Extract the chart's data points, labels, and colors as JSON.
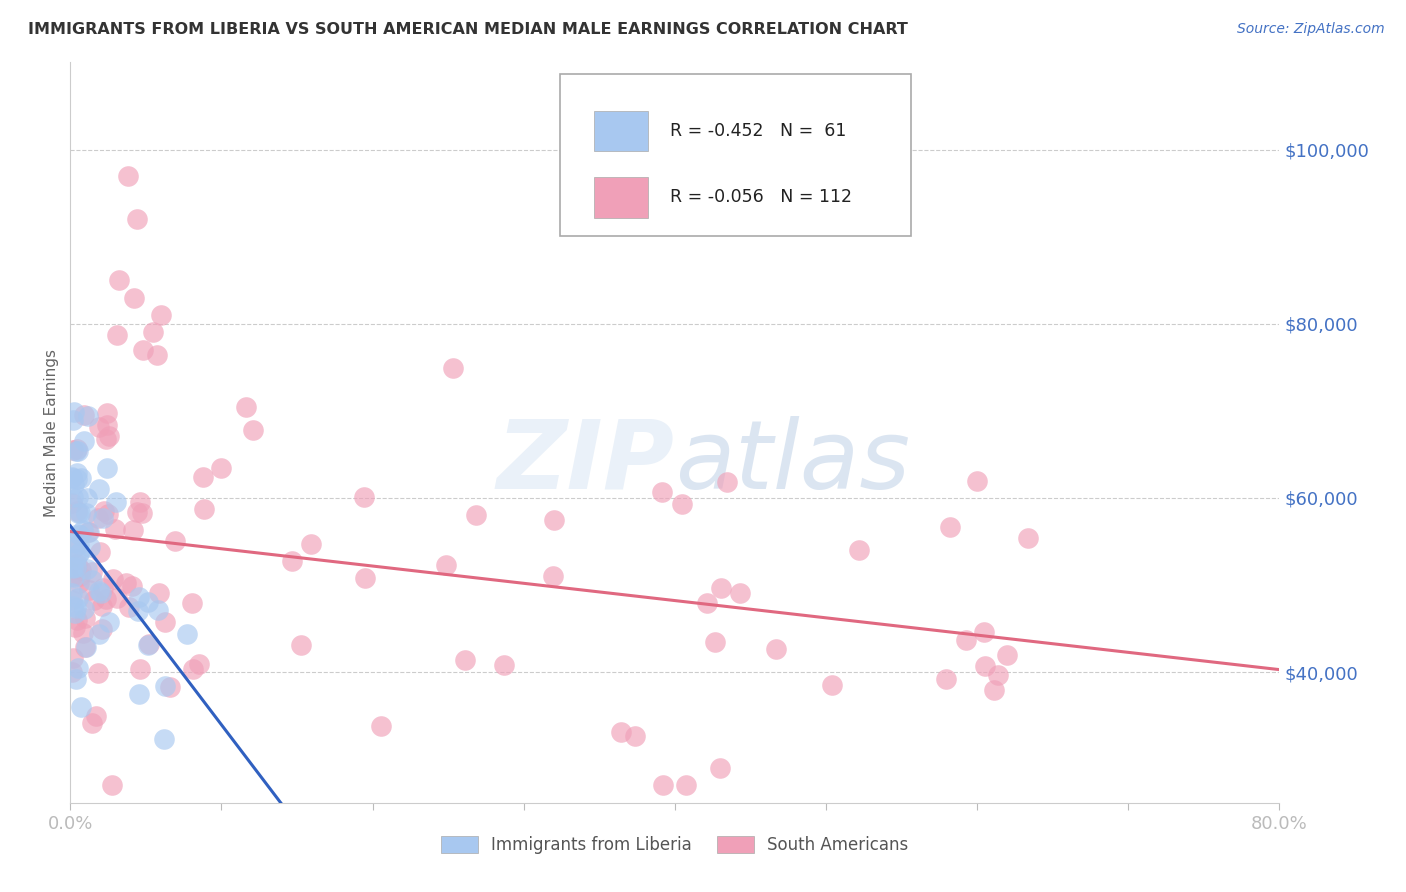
{
  "title": "IMMIGRANTS FROM LIBERIA VS SOUTH AMERICAN MEDIAN MALE EARNINGS CORRELATION CHART",
  "source": "Source: ZipAtlas.com",
  "ylabel": "Median Male Earnings",
  "legend_liberia": "Immigrants from Liberia",
  "legend_south_american": "South Americans",
  "r_liberia": -0.452,
  "n_liberia": 61,
  "r_south": -0.056,
  "n_south": 112,
  "color_liberia": "#a8c8f0",
  "color_south": "#f0a0b8",
  "line_color_liberia": "#3060c0",
  "line_color_south": "#e06880",
  "axis_color": "#4472c4",
  "title_color": "#333333",
  "background_color": "#ffffff",
  "xlim": [
    0.0,
    0.8
  ],
  "ylim": [
    25000,
    110000
  ],
  "ytick_vals": [
    40000,
    60000,
    80000,
    100000
  ],
  "ytick_labels": [
    "$40,000",
    "$60,000",
    "$80,000",
    "$100,000"
  ],
  "xtick_vals": [
    0.0,
    0.1,
    0.2,
    0.3,
    0.4,
    0.5,
    0.6,
    0.7,
    0.8
  ],
  "xtick_labels": [
    "0.0%",
    "",
    "",
    "",
    "",
    "",
    "",
    "",
    "80.0%"
  ]
}
